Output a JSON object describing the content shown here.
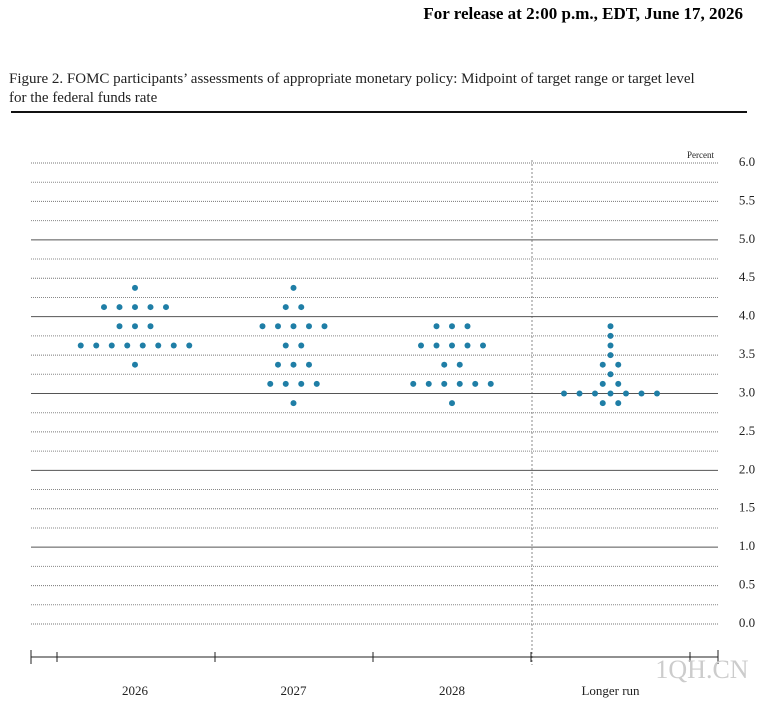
{
  "header": "For release at 2:00 p.m., EDT, June 17, 2026",
  "chart_data": {
    "type": "dot",
    "title": "Figure 2. FOMC participants’ assessments of appropriate monetary policy: Midpoint of target range or target level for the federal funds rate",
    "y_label": "Percent",
    "categories": [
      "2026",
      "2027",
      "2028",
      "Longer run"
    ],
    "dots": [
      {
        "values": [
          4.375,
          4.125,
          3.875,
          3.625,
          3.375
        ],
        "counts": [
          1,
          5,
          3,
          8,
          1
        ]
      },
      {
        "values": [
          4.375,
          4.125,
          3.875,
          3.625,
          3.375,
          3.125,
          2.875
        ],
        "counts": [
          1,
          2,
          5,
          2,
          3,
          4,
          1
        ]
      },
      {
        "values": [
          3.875,
          3.625,
          3.375,
          3.125,
          2.875
        ],
        "counts": [
          3,
          5,
          2,
          6,
          1
        ]
      },
      {
        "values": [
          3.875,
          3.75,
          3.625,
          3.5,
          3.375,
          3.25,
          3.125,
          3.0,
          2.875
        ],
        "counts": [
          1,
          1,
          1,
          1,
          2,
          1,
          2,
          7,
          2
        ]
      }
    ],
    "color": "#1f7ea6",
    "ylim": [
      0,
      6
    ],
    "yticks": [
      {
        "value": 0,
        "label": "0.0"
      },
      0.5,
      {
        "value": 1,
        "label": "1.0"
      },
      1.5,
      {
        "value": 2,
        "label": "2.0"
      },
      2.5,
      {
        "value": 3,
        "label": "3.0"
      },
      3.5,
      {
        "value": 4,
        "label": "4.0"
      },
      4.5,
      {
        "value": 5,
        "label": "5.0"
      },
      5.5,
      {
        "value": 6,
        "label": "6.0"
      }
    ],
    "yminor": [
      0.25,
      0.75,
      1.25,
      1.75,
      2.25,
      2.75,
      3.25,
      3.75,
      4.25,
      4.75,
      5.25,
      5.75
    ],
    "grid": true
  },
  "watermark": "1QH.CN"
}
